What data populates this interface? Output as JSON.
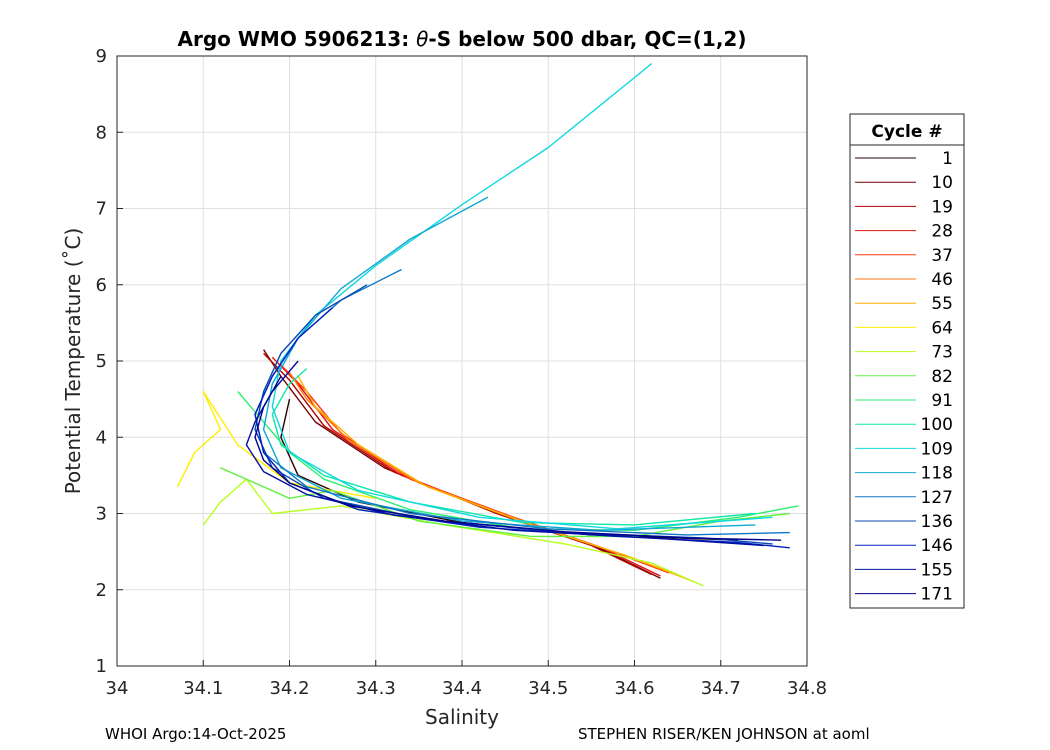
{
  "chart_data": {
    "type": "line",
    "title_prefix": "Argo WMO 5906213: ",
    "title_theta": "θ",
    "title_suffix": "-S below 500 dbar,  QC=(1,2)",
    "xlabel": "Salinity",
    "ylabel": "Potential Temperature (˚C)",
    "xlim": [
      34,
      34.8
    ],
    "ylim": [
      1,
      9
    ],
    "xticks": [
      34,
      34.1,
      34.2,
      34.3,
      34.4,
      34.5,
      34.6,
      34.7,
      34.8
    ],
    "xtick_labels": [
      "34",
      "34.1",
      "34.2",
      "34.3",
      "34.4",
      "34.5",
      "34.6",
      "34.7",
      "34.8"
    ],
    "yticks": [
      1,
      2,
      3,
      4,
      5,
      6,
      7,
      8,
      9
    ],
    "ytick_labels": [
      "1",
      "2",
      "3",
      "4",
      "5",
      "6",
      "7",
      "8",
      "9"
    ],
    "grid": true,
    "legend": {
      "title": "Cycle #",
      "placement": "outside-right",
      "entries": [
        {
          "label": "1",
          "color": "#2a0000"
        },
        {
          "label": "10",
          "color": "#7a0000"
        },
        {
          "label": "19",
          "color": "#b00000"
        },
        {
          "label": "28",
          "color": "#e01010"
        },
        {
          "label": "37",
          "color": "#ff3a10"
        },
        {
          "label": "46",
          "color": "#ff7a10"
        },
        {
          "label": "55",
          "color": "#ffb000"
        },
        {
          "label": "64",
          "color": "#ffee00"
        },
        {
          "label": "73",
          "color": "#b8ff20"
        },
        {
          "label": "82",
          "color": "#60f040"
        },
        {
          "label": "91",
          "color": "#30ee70"
        },
        {
          "label": "100",
          "color": "#10e8a8"
        },
        {
          "label": "109",
          "color": "#10d8e0"
        },
        {
          "label": "118",
          "color": "#10a8d0"
        },
        {
          "label": "127",
          "color": "#1078c8"
        },
        {
          "label": "136",
          "color": "#0848b0"
        },
        {
          "label": "146",
          "color": "#0020c0"
        },
        {
          "label": "155",
          "color": "#0010a0"
        },
        {
          "label": "171",
          "color": "#000090"
        }
      ]
    },
    "series": [
      {
        "name": "1",
        "color": "#2a0000",
        "x": [
          34.2,
          34.19,
          34.21,
          34.28,
          34.4,
          34.55,
          34.72
        ],
        "y": [
          4.5,
          4.0,
          3.5,
          3.15,
          2.88,
          2.72,
          2.65
        ]
      },
      {
        "name": "10",
        "color": "#7a0000",
        "x": [
          34.17,
          34.19,
          34.23,
          34.31,
          34.43,
          34.55,
          34.63
        ],
        "y": [
          5.15,
          4.8,
          4.2,
          3.6,
          3.05,
          2.6,
          2.15
        ]
      },
      {
        "name": "19",
        "color": "#b00000",
        "x": [
          34.17,
          34.2,
          34.24,
          34.32,
          34.44,
          34.55,
          34.62
        ],
        "y": [
          5.1,
          4.75,
          4.15,
          3.55,
          3.0,
          2.58,
          2.2
        ]
      },
      {
        "name": "28",
        "color": "#e01010",
        "x": [
          34.18,
          34.21,
          34.25,
          34.33,
          34.45,
          34.56,
          34.63
        ],
        "y": [
          5.05,
          4.7,
          4.1,
          3.5,
          2.98,
          2.56,
          2.18
        ]
      },
      {
        "name": "37",
        "color": "#ff3a10",
        "x": [
          34.19,
          34.22,
          34.26,
          34.34,
          34.46,
          34.57,
          34.64
        ],
        "y": [
          4.95,
          4.6,
          4.05,
          3.45,
          2.95,
          2.52,
          2.22
        ]
      },
      {
        "name": "46",
        "color": "#ff7a10",
        "x": [
          34.2,
          34.22,
          34.27,
          34.35,
          34.47,
          34.58,
          34.65
        ],
        "y": [
          4.85,
          4.5,
          3.95,
          3.4,
          2.9,
          2.48,
          2.2
        ]
      },
      {
        "name": "55",
        "color": "#ffb000",
        "x": [
          34.21,
          34.23,
          34.28,
          34.36,
          34.48,
          34.59,
          34.67
        ],
        "y": [
          4.8,
          4.4,
          3.9,
          3.35,
          2.85,
          2.45,
          2.1
        ]
      },
      {
        "name": "64",
        "color": "#ffee00",
        "x": [
          34.07,
          34.09,
          34.12,
          34.1,
          34.14,
          34.2,
          34.3
        ],
        "y": [
          3.35,
          3.8,
          4.1,
          4.6,
          3.9,
          3.4,
          3.2
        ]
      },
      {
        "name": "73",
        "color": "#b8ff20",
        "x": [
          34.1,
          34.12,
          34.15,
          34.18,
          34.26,
          34.38,
          34.52,
          34.62,
          34.68
        ],
        "y": [
          2.85,
          3.15,
          3.45,
          3.0,
          3.1,
          2.85,
          2.6,
          2.35,
          2.05
        ]
      },
      {
        "name": "82",
        "color": "#60f040",
        "x": [
          34.12,
          34.16,
          34.2,
          34.25,
          34.35,
          34.48,
          34.6,
          34.7,
          34.78
        ],
        "y": [
          3.6,
          3.4,
          3.2,
          3.3,
          2.9,
          2.7,
          2.7,
          2.9,
          3.0
        ]
      },
      {
        "name": "91",
        "color": "#30ee70",
        "x": [
          34.14,
          34.17,
          34.2,
          34.24,
          34.34,
          34.47,
          34.6,
          34.72,
          34.79
        ],
        "y": [
          4.6,
          4.2,
          3.8,
          3.45,
          3.05,
          2.8,
          2.78,
          2.95,
          3.1
        ]
      },
      {
        "name": "100",
        "color": "#10e8a8",
        "x": [
          34.22,
          34.2,
          34.18,
          34.19,
          34.24,
          34.34,
          34.47,
          34.6,
          34.74
        ],
        "y": [
          4.9,
          4.7,
          4.3,
          3.9,
          3.5,
          3.15,
          2.88,
          2.85,
          3.0
        ]
      },
      {
        "name": "109",
        "color": "#10d8e0",
        "x": [
          34.62,
          34.5,
          34.4,
          34.3,
          34.23,
          34.19,
          34.18,
          34.2,
          34.28,
          34.42,
          34.58,
          34.76
        ],
        "y": [
          8.9,
          7.8,
          7.05,
          6.25,
          5.6,
          5.0,
          4.4,
          3.8,
          3.3,
          2.95,
          2.8,
          2.95
        ]
      },
      {
        "name": "118",
        "color": "#10a8d0",
        "x": [
          34.43,
          34.34,
          34.26,
          34.21,
          34.18,
          34.17,
          34.19,
          34.26,
          34.4,
          34.56,
          34.74
        ],
        "y": [
          7.15,
          6.6,
          5.95,
          5.3,
          4.7,
          4.1,
          3.6,
          3.2,
          2.9,
          2.78,
          2.85
        ]
      },
      {
        "name": "127",
        "color": "#1078c8",
        "x": [
          34.33,
          34.26,
          34.21,
          34.18,
          34.16,
          34.17,
          34.22,
          34.34,
          34.5,
          34.66,
          34.78
        ],
        "y": [
          6.2,
          5.8,
          5.3,
          4.8,
          4.3,
          3.8,
          3.35,
          3.0,
          2.8,
          2.72,
          2.75
        ]
      },
      {
        "name": "136",
        "color": "#0848b0",
        "x": [
          34.29,
          34.23,
          34.19,
          34.17,
          34.16,
          34.18,
          34.24,
          34.36,
          34.52,
          34.68,
          34.76
        ],
        "y": [
          6.0,
          5.6,
          5.1,
          4.6,
          4.1,
          3.6,
          3.2,
          2.92,
          2.75,
          2.68,
          2.6
        ]
      },
      {
        "name": "146",
        "color": "#0020c0",
        "x": [
          34.25,
          34.21,
          34.18,
          34.16,
          34.17,
          34.2,
          34.28,
          34.42,
          34.58,
          34.72,
          34.78
        ],
        "y": [
          5.7,
          5.3,
          4.8,
          4.3,
          3.8,
          3.4,
          3.05,
          2.82,
          2.7,
          2.62,
          2.55
        ]
      },
      {
        "name": "155",
        "color": "#0010a0",
        "x": [
          34.21,
          34.18,
          34.16,
          34.15,
          34.17,
          34.22,
          34.32,
          34.46,
          34.62,
          34.75
        ],
        "y": [
          5.0,
          4.6,
          4.2,
          3.9,
          3.55,
          3.25,
          2.98,
          2.78,
          2.68,
          2.58
        ]
      },
      {
        "name": "171",
        "color": "#000090",
        "x": [
          34.19,
          34.17,
          34.16,
          34.17,
          34.2,
          34.27,
          34.38,
          34.52,
          34.66,
          34.77
        ],
        "y": [
          4.8,
          4.4,
          4.0,
          3.7,
          3.4,
          3.1,
          2.9,
          2.76,
          2.68,
          2.65
        ]
      }
    ]
  },
  "footer": {
    "left": "WHOI Argo:14-Oct-2025",
    "right": "STEPHEN RISER/KEN JOHNSON at aoml"
  }
}
